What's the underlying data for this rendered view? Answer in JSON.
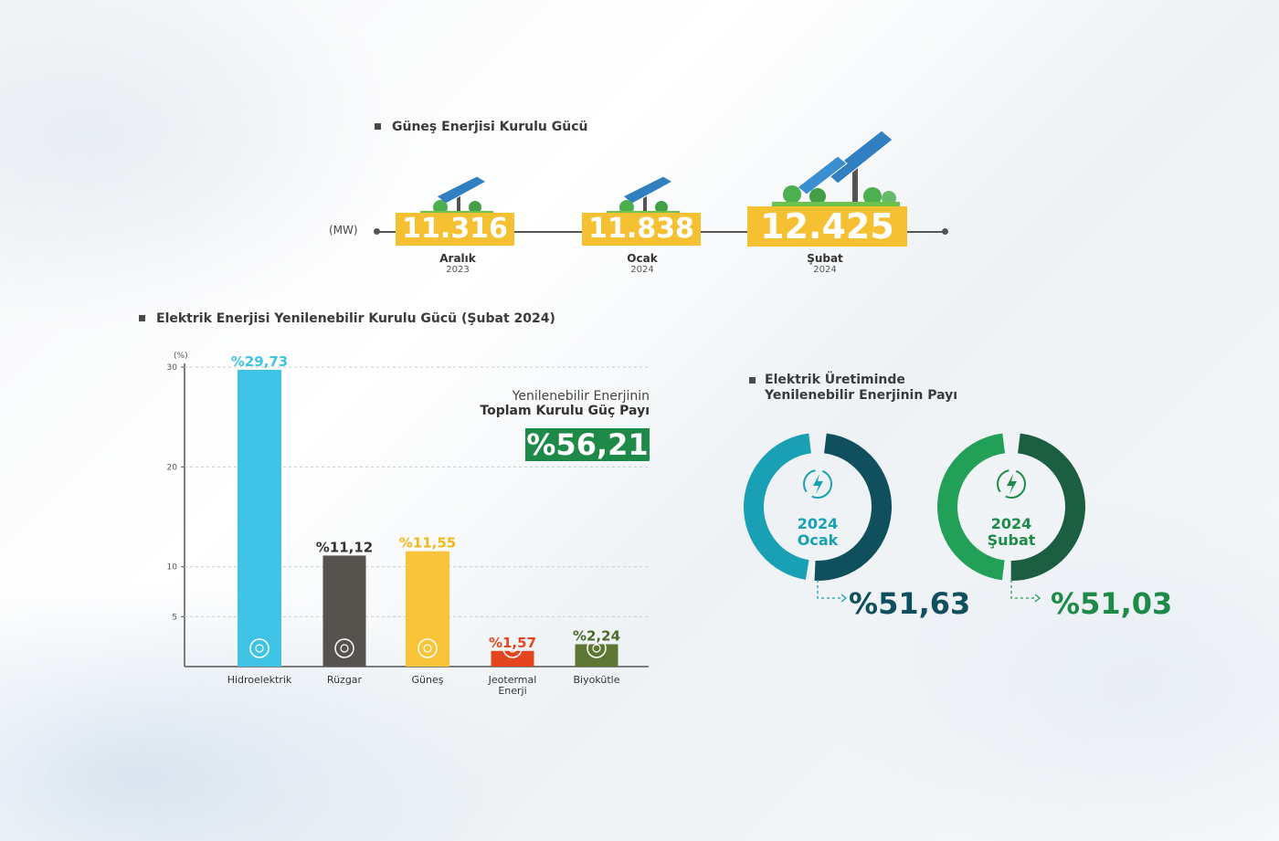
{
  "solar_section": {
    "title": "Güneş Enerjisi Kurulu Gücü",
    "unit": "(MW)",
    "items": [
      {
        "value": "11.316",
        "month": "Aralık",
        "year": "2023"
      },
      {
        "value": "11.838",
        "month": "Ocak",
        "year": "2024"
      },
      {
        "value": "12.425",
        "month": "Şubat",
        "year": "2024"
      }
    ]
  },
  "capacity_section": {
    "title": "Elektrik Enerjisi Yenilenebilir Kurulu Gücü (Şubat 2024)",
    "total_line1": "Yenilenebilir Enerjinin",
    "total_line2": "Toplam Kurulu Güç Payı",
    "total_value": "%56,21"
  },
  "chart_data": {
    "type": "bar",
    "title": "Elektrik Enerjisi Yenilenebilir Kurulu Gücü (Şubat 2024)",
    "ylabel": "(%)",
    "ylim": [
      0,
      30
    ],
    "yticks": [
      5,
      10,
      20,
      30
    ],
    "grid": true,
    "categories": [
      "Hidroelektrik",
      "Rüzgar",
      "Güneş",
      "Jeotermal Enerji",
      "Biyokütle"
    ],
    "values": [
      29.73,
      11.12,
      11.55,
      1.57,
      2.24
    ],
    "labels": [
      "%29,73",
      "%11,12",
      "%11,55",
      "%1,57",
      "%2,24"
    ],
    "colors": [
      "#40c4e6",
      "#56534e",
      "#f9c33a",
      "#e5451e",
      "#5d7634"
    ],
    "label_colors": [
      "#40c4e6",
      "#333333",
      "#f2b91c",
      "#e5451e",
      "#4a6a2a"
    ]
  },
  "share_section": {
    "title_line1": "Elektrik Üretiminde",
    "title_line2": "Yenilenebilir Enerjinin Payı",
    "donuts": [
      {
        "year": "2024",
        "month": "Ocak",
        "value": "%51,63",
        "share": 0.5163,
        "color_main": "#0f4f5e",
        "color_rest": "#1aa0b5",
        "text_color": "#1aa0b5",
        "value_color": "#0f4f5e"
      },
      {
        "year": "2024",
        "month": "Şubat",
        "value": "%51,03",
        "share": 0.5103,
        "color_main": "#1b5e42",
        "color_rest": "#22a058",
        "text_color": "#1e8a47",
        "value_color": "#1e8a47"
      }
    ]
  },
  "colors": {
    "accent_yellow": "#f5c132",
    "green": "#1e8a47"
  }
}
